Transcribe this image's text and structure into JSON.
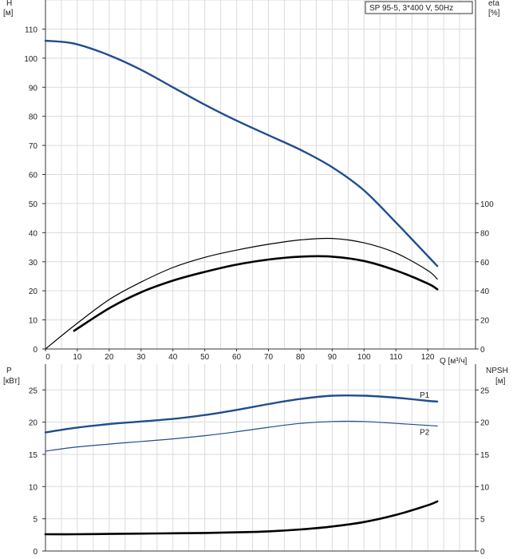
{
  "legend": "SP 95-5, 3*400 V, 50Hz",
  "top": {
    "y_left_label": [
      "H",
      "[м]"
    ],
    "y_right_label": [
      "eta",
      "[%]"
    ],
    "x_label": "Q [м³/ч]",
    "xlim": [
      0,
      135
    ],
    "ylim_left": [
      0,
      120
    ],
    "ylim_right": [
      0,
      240
    ],
    "x_ticks": [
      "0",
      "10",
      "20",
      "30",
      "40",
      "50",
      "60",
      "70",
      "80",
      "90",
      "100",
      "110",
      "120"
    ],
    "y_left_ticks": [
      "0",
      "10",
      "20",
      "30",
      "40",
      "50",
      "60",
      "70",
      "80",
      "90",
      "100",
      "110"
    ],
    "y_right_ticks": [
      "0",
      "20",
      "40",
      "60",
      "80",
      "100"
    ]
  },
  "bottom": {
    "y_left_label": [
      "P",
      "[кВт]"
    ],
    "y_right_label": [
      "NPSH",
      "[м]"
    ],
    "ylim": [
      0,
      29
    ],
    "y_left_ticks": [
      "0",
      "5",
      "10",
      "15",
      "20",
      "25"
    ],
    "y_right_ticks": [
      "0",
      "5",
      "10",
      "15",
      "20",
      "25"
    ]
  },
  "chart_data": [
    {
      "type": "line",
      "series": [
        {
          "name": "",
          "axis": "left",
          "color": "#1f4e8c",
          "x": [
            0,
            9,
            20,
            30,
            40,
            50,
            60,
            70,
            80,
            90,
            100,
            110,
            120,
            123
          ],
          "y": [
            106,
            105,
            101,
            96,
            90,
            84,
            78.5,
            73.5,
            68.5,
            62.5,
            54.5,
            43.5,
            32,
            28.5
          ]
        },
        {
          "name": "",
          "axis": "right",
          "color": "#000000",
          "x": [
            0,
            9,
            20,
            30,
            40,
            50,
            60,
            70,
            80,
            90,
            100,
            110,
            120,
            123
          ],
          "y": [
            0,
            16,
            34,
            46,
            56,
            63,
            68,
            72,
            75,
            76,
            73,
            66,
            54,
            48
          ]
        },
        {
          "name": "",
          "axis": "right",
          "color": "#000000",
          "x": [
            9,
            20,
            30,
            40,
            50,
            60,
            70,
            80,
            90,
            100,
            110,
            120,
            123
          ],
          "y": [
            12.5,
            28,
            39,
            47,
            53,
            58,
            61.5,
            63.5,
            63.5,
            60.5,
            54,
            45,
            41
          ]
        }
      ]
    },
    {
      "type": "line",
      "series": [
        {
          "name": "P1",
          "color": "#1f4e8c",
          "x": [
            0,
            9,
            20,
            30,
            40,
            50,
            60,
            70,
            80,
            90,
            100,
            110,
            120,
            123
          ],
          "y": [
            18.4,
            19.1,
            19.7,
            20.1,
            20.5,
            21.1,
            21.9,
            22.8,
            23.6,
            24.1,
            24.1,
            23.8,
            23.3,
            23.2
          ]
        },
        {
          "name": "P2",
          "color": "#1f4e8c",
          "x": [
            0,
            9,
            20,
            30,
            40,
            50,
            60,
            70,
            80,
            90,
            100,
            110,
            120,
            123
          ],
          "y": [
            15.5,
            16.1,
            16.6,
            17.0,
            17.4,
            17.9,
            18.5,
            19.2,
            19.8,
            20.1,
            20.1,
            19.8,
            19.5,
            19.4
          ]
        },
        {
          "name": "",
          "color": "#000000",
          "x": [
            0,
            9,
            20,
            30,
            40,
            50,
            60,
            70,
            80,
            90,
            100,
            110,
            120,
            123
          ],
          "y": [
            2.6,
            2.6,
            2.65,
            2.7,
            2.75,
            2.8,
            2.9,
            3.05,
            3.35,
            3.8,
            4.5,
            5.6,
            7.1,
            7.7
          ]
        }
      ]
    }
  ]
}
